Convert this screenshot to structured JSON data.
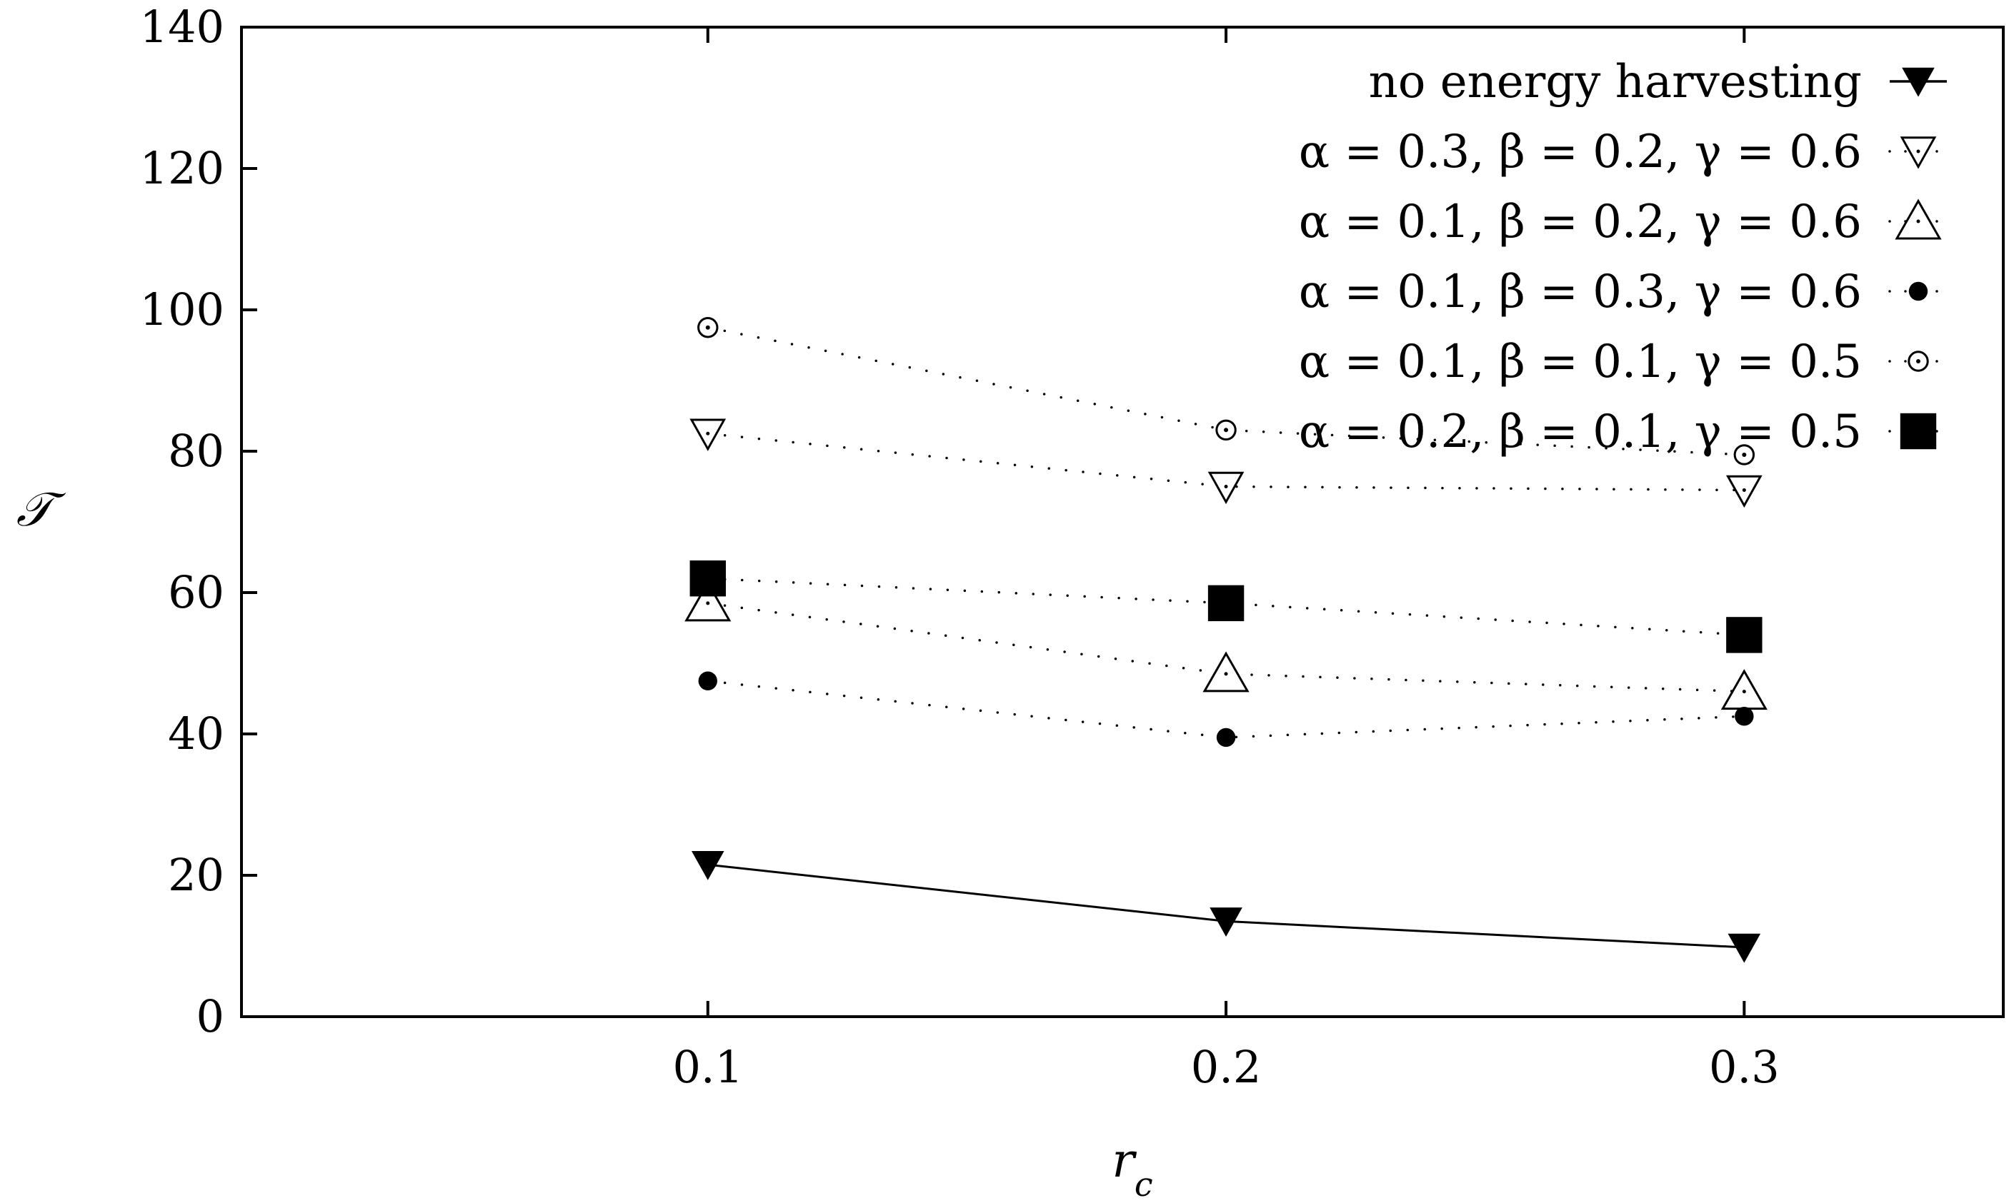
{
  "chart_data": {
    "type": "line",
    "x": [
      0.1,
      0.2,
      0.3
    ],
    "x_tick_labels": [
      "0.1",
      "0.2",
      "0.3"
    ],
    "xlim": [
      0.01,
      0.35
    ],
    "ylim": [
      0,
      140
    ],
    "y_ticks": [
      0,
      20,
      40,
      60,
      80,
      100,
      120,
      140
    ],
    "y_tick_labels": [
      "0",
      "20",
      "40",
      "60",
      "80",
      "100",
      "120",
      "140"
    ],
    "xlabel": "r",
    "xlabel_subscript": "c",
    "ylabel": "𝒯",
    "grid": false,
    "legend_position": "top-right",
    "series": [
      {
        "name": "no energy harvesting",
        "marker": "triangle-down-filled",
        "line": "solid",
        "values": [
          21.5,
          13.5,
          9.8
        ]
      },
      {
        "name": "α = 0.3, β = 0.2, γ = 0.6",
        "marker": "triangle-down-open",
        "line": "dotted",
        "values": [
          82.5,
          75.0,
          74.5
        ]
      },
      {
        "name": "α = 0.1, β = 0.2, γ = 0.6",
        "marker": "triangle-up-open",
        "line": "dotted",
        "values": [
          58.5,
          48.5,
          46.0
        ]
      },
      {
        "name": "α = 0.1, β = 0.3, γ = 0.6",
        "marker": "circle-filled",
        "line": "dotted",
        "values": [
          47.5,
          39.5,
          42.5
        ]
      },
      {
        "name": "α = 0.1, β = 0.1, γ = 0.5",
        "marker": "circle-dot-open",
        "line": "dotted",
        "values": [
          97.5,
          83.0,
          79.5
        ]
      },
      {
        "name": "α = 0.2, β = 0.1, γ = 0.5",
        "marker": "square-filled",
        "line": "dotted",
        "values": [
          62.0,
          58.5,
          54.0
        ]
      }
    ]
  }
}
